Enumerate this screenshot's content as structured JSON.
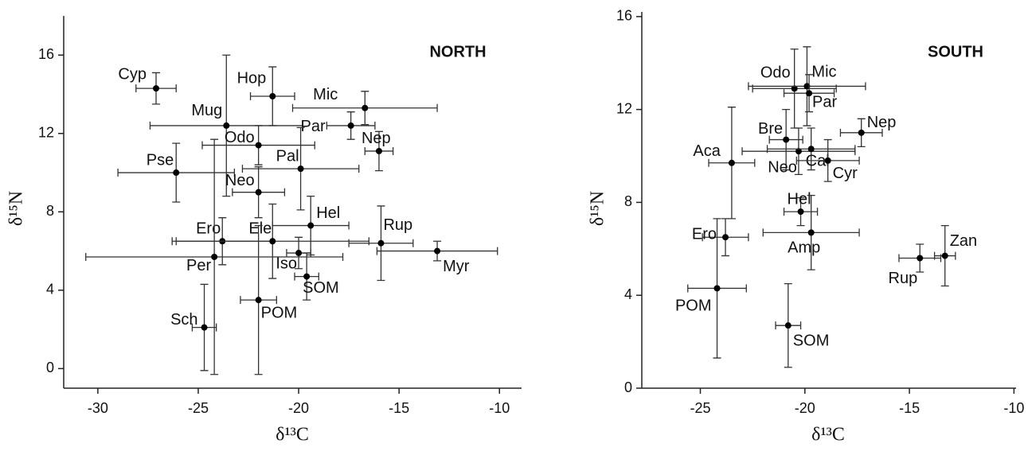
{
  "chart_data": [
    {
      "type": "scatter",
      "title": "NORTH",
      "xlabel": "δ¹³C",
      "ylabel": "δ¹⁵N",
      "xlim": [
        -31.7,
        -8.9
      ],
      "xticks": [
        -30,
        -25,
        -20,
        -15,
        -10
      ],
      "ylim": [
        -1,
        18
      ],
      "yticks": [
        0,
        4,
        8,
        12,
        16
      ],
      "color": "#000000",
      "labels": [
        "Cyp",
        "Hop",
        "Mic",
        "Mug",
        "Par",
        "Nep",
        "Odo",
        "Pal",
        "Pse",
        "Neo",
        "Hel",
        "Rup",
        "Ero",
        "Ele",
        "Myr",
        "Per",
        "Iso",
        "SOM",
        "POM",
        "Sch"
      ],
      "x": [
        -27.1,
        -21.3,
        -16.7,
        -23.6,
        -17.4,
        -16.0,
        -22.0,
        -19.9,
        -26.1,
        -22.0,
        -19.4,
        -15.9,
        -23.8,
        -21.3,
        -13.1,
        -24.2,
        -20.0,
        -19.6,
        -22.0,
        -24.7
      ],
      "y": [
        14.3,
        13.9,
        13.3,
        12.4,
        12.4,
        11.1,
        11.4,
        10.2,
        10.0,
        9.0,
        7.3,
        6.4,
        6.5,
        6.5,
        6.0,
        5.7,
        5.9,
        4.7,
        3.5,
        2.1
      ],
      "xerr": [
        1.0,
        1.1,
        3.6,
        3.8,
        1.2,
        0.7,
        2.8,
        2.9,
        2.9,
        1.3,
        1.9,
        1.6,
        2.5,
        4.8,
        3.0,
        6.4,
        0.6,
        0.6,
        0.9,
        0.6
      ],
      "yerr": [
        0.8,
        1.5,
        0.85,
        3.6,
        0.7,
        1.0,
        1.0,
        2.1,
        1.5,
        1.3,
        1.5,
        1.9,
        1.2,
        1.9,
        0.5,
        6.0,
        0.8,
        1.2,
        3.8,
        2.2
      ]
    },
    {
      "type": "scatter",
      "title": "SOUTH",
      "xlabel": "δ¹³C",
      "ylabel": "δ¹⁵N",
      "xlim": [
        -27.8,
        -9.9
      ],
      "xticks": [
        -25,
        -20,
        -15,
        -10
      ],
      "ylim": [
        0,
        16.2
      ],
      "yticks": [
        0,
        4,
        8,
        12,
        16
      ],
      "color": "#000000",
      "labels": [
        "Odo",
        "Mic",
        "Par",
        "Nep",
        "Bre",
        "Neo",
        "Cal",
        "Cyr",
        "Aca",
        "Hel",
        "Amp",
        "Ero",
        "Zan",
        "Rup",
        "POM",
        "SOM"
      ],
      "x": [
        -20.5,
        -19.9,
        -19.8,
        -17.3,
        -20.9,
        -20.3,
        -19.7,
        -18.9,
        -23.5,
        -20.2,
        -19.7,
        -23.8,
        -13.3,
        -14.5,
        -24.2,
        -20.8
      ],
      "y": [
        12.9,
        13.0,
        12.7,
        11.0,
        10.7,
        10.2,
        10.3,
        9.8,
        9.7,
        7.6,
        6.7,
        6.5,
        5.7,
        5.6,
        4.3,
        2.7
      ],
      "xerr": [
        2.0,
        2.8,
        1.2,
        1.0,
        0.8,
        2.7,
        2.1,
        1.5,
        1.1,
        0.8,
        2.3,
        1.1,
        0.5,
        1.0,
        1.4,
        0.6
      ],
      "yerr": [
        1.7,
        1.7,
        0.8,
        0.6,
        1.3,
        1.0,
        0.9,
        0.9,
        2.4,
        0.6,
        1.6,
        0.8,
        1.3,
        0.6,
        3.0,
        1.8
      ]
    }
  ]
}
